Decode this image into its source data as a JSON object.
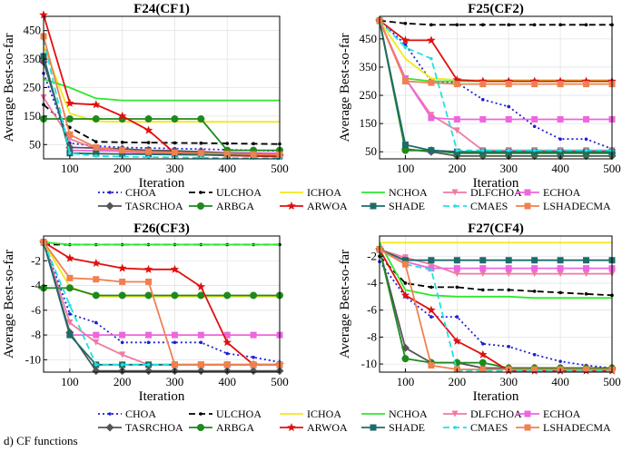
{
  "figure_caption": "d) CF functions",
  "chart_data": [
    {
      "type": "line",
      "title": "F24(CF1)",
      "xlabel": "Iteration",
      "ylabel": "Average Best-so-far",
      "xlim": [
        50,
        500
      ],
      "ylim": [
        0,
        500
      ],
      "xticks": [
        100,
        200,
        300,
        400,
        500
      ],
      "yticks": [
        50,
        150,
        250,
        350,
        450
      ],
      "x": [
        50,
        100,
        150,
        200,
        250,
        300,
        350,
        400,
        450,
        500
      ],
      "series": [
        {
          "name": "CHOA",
          "values": [
            300,
            55,
            45,
            40,
            38,
            36,
            34,
            32,
            30,
            28
          ]
        },
        {
          "name": "ULCHOA",
          "values": [
            190,
            110,
            60,
            58,
            57,
            56,
            55,
            54,
            53,
            52
          ]
        },
        {
          "name": "ICHOA",
          "values": [
            395,
            160,
            132,
            130,
            130,
            130,
            130,
            130,
            130,
            130
          ]
        },
        {
          "name": "NCHOA",
          "values": [
            280,
            250,
            212,
            205,
            205,
            205,
            205,
            205,
            205,
            205
          ]
        },
        {
          "name": "DLFCHOA",
          "values": [
            215,
            70,
            35,
            25,
            20,
            18,
            15,
            12,
            10,
            8
          ]
        },
        {
          "name": "ECHOA",
          "values": [
            345,
            30,
            28,
            27,
            26,
            25,
            24,
            22,
            20,
            20
          ]
        },
        {
          "name": "TASRCHOA",
          "values": [
            340,
            40,
            38,
            35,
            30,
            28,
            25,
            20,
            18,
            15
          ]
        },
        {
          "name": "ARBGA",
          "values": [
            140,
            140,
            140,
            140,
            140,
            140,
            140,
            30,
            30,
            30
          ]
        },
        {
          "name": "ARWOA",
          "values": [
            505,
            195,
            190,
            150,
            100,
            20,
            15,
            12,
            10,
            8
          ]
        },
        {
          "name": "SHADE",
          "values": [
            360,
            20,
            18,
            17,
            16,
            15,
            14,
            13,
            12,
            12
          ]
        },
        {
          "name": "CMAES",
          "values": [
            420,
            20,
            10,
            8,
            6,
            5,
            4,
            3,
            3,
            2
          ]
        },
        {
          "name": "LSHADECMA",
          "values": [
            430,
            85,
            40,
            30,
            25,
            22,
            20,
            18,
            16,
            15
          ]
        }
      ]
    },
    {
      "type": "line",
      "title": "F25(CF2)",
      "xlabel": "Iteration",
      "ylabel": "Average Best-so-far",
      "xlim": [
        50,
        500
      ],
      "ylim": [
        25,
        530
      ],
      "xticks": [
        100,
        200,
        300,
        400,
        500
      ],
      "yticks": [
        50,
        150,
        250,
        350,
        450
      ],
      "x": [
        50,
        100,
        150,
        200,
        250,
        300,
        350,
        400,
        450,
        500
      ],
      "series": [
        {
          "name": "CHOA",
          "values": [
            515,
            430,
            300,
            295,
            235,
            210,
            140,
            95,
            95,
            60
          ]
        },
        {
          "name": "ULCHOA",
          "values": [
            515,
            505,
            500,
            500,
            500,
            500,
            500,
            500,
            500,
            500
          ]
        },
        {
          "name": "ICHOA",
          "values": [
            515,
            380,
            310,
            305,
            305,
            305,
            305,
            305,
            305,
            305
          ]
        },
        {
          "name": "NCHOA",
          "values": [
            515,
            310,
            300,
            300,
            300,
            300,
            300,
            300,
            300,
            300
          ]
        },
        {
          "name": "DLFCHOA",
          "values": [
            515,
            310,
            180,
            125,
            55,
            55,
            55,
            55,
            55,
            55
          ]
        },
        {
          "name": "ECHOA",
          "values": [
            515,
            310,
            170,
            165,
            165,
            165,
            165,
            165,
            165,
            165
          ]
        },
        {
          "name": "TASRCHOA",
          "values": [
            515,
            60,
            50,
            35,
            35,
            35,
            35,
            35,
            35,
            35
          ]
        },
        {
          "name": "ARBGA",
          "values": [
            515,
            55,
            55,
            45,
            45,
            45,
            45,
            45,
            45,
            45
          ]
        },
        {
          "name": "ARWOA",
          "values": [
            515,
            445,
            445,
            305,
            300,
            300,
            300,
            300,
            300,
            300
          ]
        },
        {
          "name": "SHADE",
          "values": [
            515,
            75,
            55,
            50,
            50,
            50,
            50,
            50,
            50,
            50
          ]
        },
        {
          "name": "CMAES",
          "values": [
            515,
            420,
            380,
            55,
            55,
            55,
            55,
            55,
            55,
            55
          ]
        },
        {
          "name": "LSHADECMA",
          "values": [
            515,
            300,
            295,
            290,
            290,
            290,
            290,
            290,
            290,
            290
          ]
        }
      ]
    },
    {
      "type": "line",
      "title": "F26(CF3)",
      "xlabel": "Iteration",
      "ylabel": "Average Best-so-far",
      "xlim": [
        50,
        500
      ],
      "ylim": [
        -11,
        0
      ],
      "xticks": [
        100,
        200,
        300,
        400,
        500
      ],
      "yticks": [
        -2,
        -4,
        -6,
        -8,
        -10
      ],
      "x": [
        50,
        100,
        150,
        200,
        250,
        300,
        350,
        400,
        450,
        500
      ],
      "series": [
        {
          "name": "CHOA",
          "values": [
            -0.5,
            -6.3,
            -7.0,
            -8.6,
            -8.6,
            -8.6,
            -8.6,
            -9.5,
            -9.8,
            -10.2
          ]
        },
        {
          "name": "ULCHOA",
          "values": [
            -0.7,
            -0.7,
            -0.7,
            -0.7,
            -0.7,
            -0.7,
            -0.7,
            -0.7,
            -0.7,
            -0.7
          ]
        },
        {
          "name": "ICHOA",
          "values": [
            -0.5,
            -4.1,
            -4.9,
            -4.9,
            -4.9,
            -4.9,
            -4.9,
            -4.9,
            -4.9,
            -4.9
          ]
        },
        {
          "name": "NCHOA",
          "values": [
            -0.5,
            -0.7,
            -0.7,
            -0.7,
            -0.7,
            -0.7,
            -0.7,
            -0.7,
            -0.7,
            -0.7
          ]
        },
        {
          "name": "DLFCHOA",
          "values": [
            -0.5,
            -7.0,
            -8.6,
            -9.6,
            -10.4,
            -10.4,
            -10.4,
            -10.4,
            -10.4,
            -10.4
          ]
        },
        {
          "name": "ECHOA",
          "values": [
            -0.5,
            -8.0,
            -8.0,
            -8.0,
            -8.0,
            -8.0,
            -8.0,
            -8.0,
            -8.0,
            -8.0
          ]
        },
        {
          "name": "TASRCHOA",
          "values": [
            -0.5,
            -7.8,
            -10.9,
            -10.9,
            -10.9,
            -10.9,
            -10.9,
            -10.9,
            -10.9,
            -10.9
          ]
        },
        {
          "name": "ARBGA",
          "values": [
            -4.2,
            -4.2,
            -4.8,
            -4.8,
            -4.8,
            -4.8,
            -4.8,
            -4.8,
            -4.8,
            -4.8
          ]
        },
        {
          "name": "ARWOA",
          "values": [
            -0.5,
            -1.8,
            -2.2,
            -2.6,
            -2.7,
            -2.7,
            -4.1,
            -8.6,
            -10.4,
            -10.4
          ]
        },
        {
          "name": "SHADE",
          "values": [
            -0.5,
            -8.0,
            -10.4,
            -10.4,
            -10.4,
            -10.4,
            -10.4,
            -10.4,
            -10.4,
            -10.4
          ]
        },
        {
          "name": "CMAES",
          "values": [
            -0.5,
            -5.6,
            -10.4,
            -10.4,
            -10.4,
            -10.4,
            -10.4,
            -10.4,
            -10.4,
            -10.4
          ]
        },
        {
          "name": "LSHADECMA",
          "values": [
            -0.5,
            -3.4,
            -3.5,
            -3.7,
            -3.7,
            -10.4,
            -10.4,
            -10.4,
            -10.4,
            -10.4
          ]
        }
      ]
    },
    {
      "type": "line",
      "title": "F27(CF4)",
      "xlabel": "Iteration",
      "ylabel": "Average Best-so-far",
      "xlim": [
        50,
        500
      ],
      "ylim": [
        -10.6,
        -0.5
      ],
      "xticks": [
        100,
        200,
        300,
        400,
        500
      ],
      "yticks": [
        -2,
        -4,
        -6,
        -8,
        -10
      ],
      "x": [
        50,
        100,
        150,
        200,
        250,
        300,
        350,
        400,
        450,
        500
      ],
      "series": [
        {
          "name": "CHOA",
          "values": [
            -2.4,
            -5.0,
            -6.5,
            -6.5,
            -8.5,
            -8.7,
            -9.3,
            -9.8,
            -10.1,
            -10.3
          ]
        },
        {
          "name": "ULCHOA",
          "values": [
            -2.0,
            -4.0,
            -4.3,
            -4.3,
            -4.5,
            -4.5,
            -4.6,
            -4.7,
            -4.8,
            -4.9
          ]
        },
        {
          "name": "ICHOA",
          "values": [
            -1.0,
            -1.0,
            -1.0,
            -1.0,
            -1.0,
            -1.0,
            -1.0,
            -1.0,
            -1.0,
            -1.0
          ]
        },
        {
          "name": "NCHOA",
          "values": [
            -1.0,
            -4.5,
            -4.9,
            -5.0,
            -5.0,
            -5.0,
            -5.1,
            -5.1,
            -5.1,
            -5.1
          ]
        },
        {
          "name": "DLFCHOA",
          "values": [
            -1.5,
            -2.1,
            -2.6,
            -3.3,
            -3.3,
            -3.3,
            -3.3,
            -3.3,
            -3.3,
            -3.3
          ]
        },
        {
          "name": "ECHOA",
          "values": [
            -1.5,
            -2.4,
            -2.9,
            -2.9,
            -2.9,
            -2.9,
            -2.9,
            -2.9,
            -2.9,
            -2.9
          ]
        },
        {
          "name": "TASRCHOA",
          "values": [
            -1.5,
            -8.8,
            -9.9,
            -9.9,
            -10.3,
            -10.3,
            -10.3,
            -10.3,
            -10.3,
            -10.3
          ]
        },
        {
          "name": "ARBGA",
          "values": [
            -1.5,
            -9.6,
            -9.9,
            -9.9,
            -9.9,
            -10.3,
            -10.3,
            -10.3,
            -10.3,
            -10.3
          ]
        },
        {
          "name": "ARWOA",
          "values": [
            -1.5,
            -4.9,
            -6.0,
            -8.3,
            -9.3,
            -10.5,
            -10.5,
            -10.5,
            -10.5,
            -10.5
          ]
        },
        {
          "name": "SHADE",
          "values": [
            -1.5,
            -2.3,
            -2.3,
            -2.3,
            -2.3,
            -2.3,
            -2.3,
            -2.3,
            -2.3,
            -2.3
          ]
        },
        {
          "name": "CMAES",
          "values": [
            -1.5,
            -2.6,
            -3.0,
            -10.5,
            -10.5,
            -10.5,
            -10.5,
            -10.5,
            -10.5,
            -10.5
          ]
        },
        {
          "name": "LSHADECMA",
          "values": [
            -1.5,
            -2.6,
            -10.1,
            -10.4,
            -10.4,
            -10.4,
            -10.4,
            -10.4,
            -10.4,
            -10.4
          ]
        }
      ]
    }
  ],
  "legend": [
    {
      "name": "CHOA",
      "color": "#1f1fd6",
      "dash": "dot",
      "marker": "dot"
    },
    {
      "name": "ULCHOA",
      "color": "#000000",
      "dash": "dash",
      "marker": "dot"
    },
    {
      "name": "ICHOA",
      "color": "#f2e81a",
      "dash": "solid",
      "marker": "none"
    },
    {
      "name": "NCHOA",
      "color": "#2ee82e",
      "dash": "solid",
      "marker": "none"
    },
    {
      "name": "DLFCHOA",
      "color": "#f07aa0",
      "dash": "solid",
      "marker": "triangle"
    },
    {
      "name": "ECHOA",
      "color": "#ee66dd",
      "dash": "solid",
      "marker": "square"
    },
    {
      "name": "TASRCHOA",
      "color": "#555555",
      "dash": "solid",
      "marker": "diamond"
    },
    {
      "name": "ARBGA",
      "color": "#1e8a1e",
      "dash": "solid",
      "marker": "circle"
    },
    {
      "name": "ARWOA",
      "color": "#e01010",
      "dash": "solid",
      "marker": "star"
    },
    {
      "name": "SHADE",
      "color": "#1e6b6b",
      "dash": "solid",
      "marker": "square"
    },
    {
      "name": "CMAES",
      "color": "#22e0e0",
      "dash": "dash",
      "marker": "dot"
    },
    {
      "name": "LSHADECMA",
      "color": "#f08050",
      "dash": "solid",
      "marker": "square"
    }
  ]
}
